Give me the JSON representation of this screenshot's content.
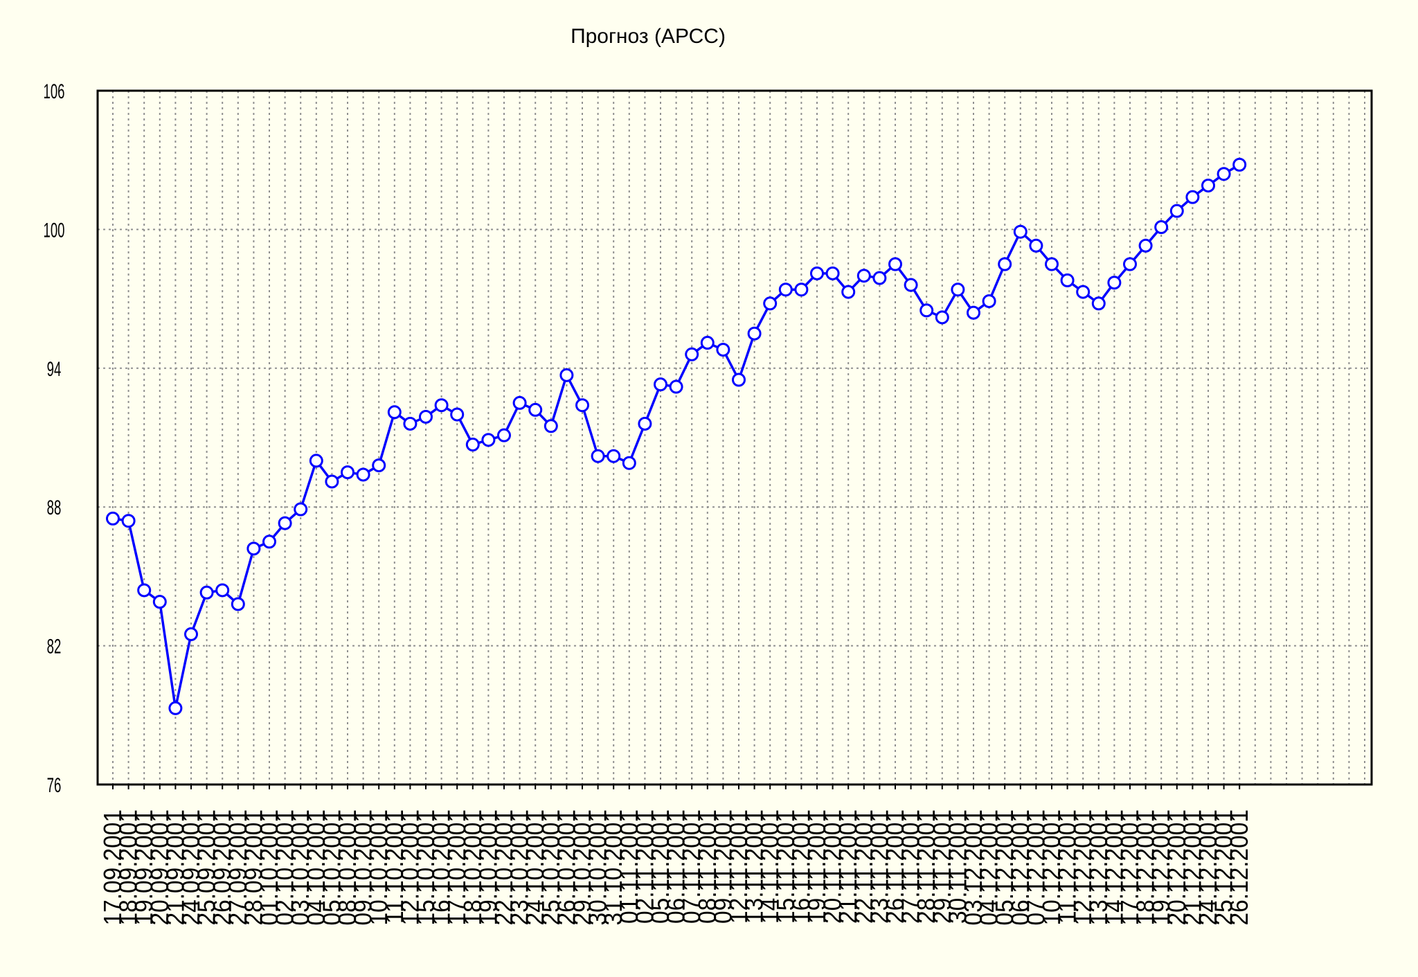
{
  "chart_data": {
    "type": "line",
    "title": "Прогноз (АРСС)",
    "xlabel": "",
    "ylabel": "",
    "ylim": [
      76,
      106
    ],
    "yticks": [
      "106",
      "100",
      "94",
      "88",
      "82",
      "76"
    ],
    "grid": true,
    "x": [
      "17.09.2001",
      "18.09.2001",
      "19.09.2001",
      "20.09.2001",
      "21.09.2001",
      "24.09.2001",
      "25.09.2001",
      "26.09.2001",
      "27.09.2001",
      "28.09.2001",
      "01.10.2001",
      "02.10.2001",
      "03.10.2001",
      "04.10.2001",
      "05.10.2001",
      "08.10.2001",
      "09.10.2001",
      "10.10.2001",
      "11.10.2001",
      "12.10.2001",
      "15.10.2001",
      "16.10.2001",
      "17.10.2001",
      "18.10.2001",
      "19.10.2001",
      "22.10.2001",
      "23.10.2001",
      "24.10.2001",
      "25.10.2001",
      "26.10.2001",
      "29.10.2001",
      "30.10.2001",
      "31.10.2001",
      "01.11.2001",
      "02.11.2001",
      "05.11.2001",
      "06.11.2001",
      "07.11.2001",
      "08.11.2001",
      "09.11.2001",
      "12.11.2001",
      "13.11.2001",
      "14.11.2001",
      "15.11.2001",
      "16.11.2001",
      "19.11.2001",
      "20.11.2001",
      "21.11.2001",
      "22.11.2001",
      "23.11.2001",
      "26.11.2001",
      "27.11.2001",
      "28.11.2001",
      "29.11.2001",
      "30.11.2001",
      "03.12.2001",
      "04.12.2001",
      "05.12.2001",
      "06.12.2001",
      "07.12.2001",
      "10.12.2001",
      "11.12.2001",
      "12.12.2001",
      "13.12.2001",
      "14.12.2001",
      "17.12.2001",
      "18.12.2001",
      "19.12.2001",
      "20.12.2001",
      "21.12.2001",
      "24.12.2001",
      "25.12.2001",
      "26.12.2001"
    ],
    "series": [
      {
        "color": "#0000ff",
        "marker": "circle-open",
        "values": [
          87.5,
          87.4,
          84.4,
          83.9,
          79.3,
          82.5,
          84.3,
          84.4,
          83.8,
          86.2,
          86.5,
          87.3,
          87.9,
          90.0,
          89.1,
          89.5,
          89.4,
          89.8,
          92.1,
          91.6,
          91.9,
          92.4,
          92.0,
          90.7,
          90.9,
          91.1,
          92.5,
          92.2,
          91.5,
          93.7,
          92.4,
          90.2,
          90.2,
          89.9,
          91.6,
          93.3,
          93.2,
          94.6,
          95.1,
          94.8,
          93.5,
          95.5,
          96.8,
          97.4,
          97.4,
          98.1,
          98.1,
          97.3,
          98.0,
          97.9,
          98.5,
          97.6,
          96.5,
          96.2,
          97.4,
          96.4,
          96.9,
          98.5,
          99.9,
          99.3,
          98.5,
          97.8,
          97.3,
          96.8,
          97.7,
          98.5,
          99.3,
          100.1,
          100.8,
          101.4,
          101.9,
          102.4,
          102.8
        ]
      }
    ]
  }
}
